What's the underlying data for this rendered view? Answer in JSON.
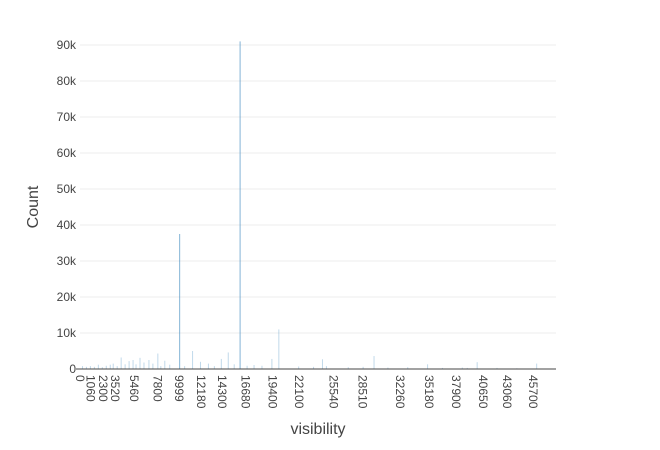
{
  "chart_data": {
    "type": "bar",
    "title": "",
    "xlabel": "visibility",
    "ylabel": "Count",
    "xlim": [
      0,
      48000
    ],
    "ylim": [
      0,
      90000
    ],
    "grid": true,
    "x_tick_values": [
      0,
      1060,
      2300,
      3520,
      5460,
      7800,
      9999,
      12180,
      14300,
      16680,
      19400,
      22100,
      25540,
      28510,
      32260,
      35180,
      37900,
      40650,
      43060,
      45700
    ],
    "x_tick_labels": [
      "0",
      "1060",
      "2300",
      "3520",
      "5460",
      "7800",
      "9999",
      "12180",
      "14300",
      "16680",
      "19400",
      "22100",
      "25540",
      "28510",
      "32260",
      "35180",
      "37900",
      "40650",
      "43060",
      "45700"
    ],
    "y_tick_values": [
      0,
      10000,
      20000,
      30000,
      40000,
      50000,
      60000,
      70000,
      80000,
      90000
    ],
    "y_tick_labels": [
      "0",
      "10k",
      "20k",
      "30k",
      "40k",
      "50k",
      "60k",
      "70k",
      "80k",
      "90k"
    ],
    "series": [
      {
        "color": "#1f77b4",
        "x": [
          200,
          600,
          1000,
          1400,
          1800,
          2200,
          2600,
          3000,
          3300,
          3700,
          4100,
          4500,
          4900,
          5300,
          5600,
          6000,
          6400,
          6900,
          7300,
          7800,
          8100,
          8500,
          9000,
          9999,
          10500,
          11300,
          12100,
          12900,
          13500,
          14200,
          14900,
          15500,
          16093,
          16800,
          17500,
          18300,
          19300,
          20000,
          22000,
          23500,
          24400,
          24800,
          27000,
          28500,
          29600,
          31000,
          33000,
          35000,
          36500,
          38500,
          39000,
          40000,
          42000,
          44000,
          46000
        ],
        "y": [
          800,
          600,
          800,
          600,
          1200,
          500,
          900,
          1200,
          1500,
          800,
          3200,
          1300,
          2200,
          2500,
          1300,
          3100,
          1800,
          2500,
          1500,
          4300,
          800,
          2300,
          1200,
          37500,
          800,
          5000,
          2000,
          1500,
          800,
          2800,
          4600,
          1300,
          91000,
          900,
          1100,
          900,
          2800,
          11000,
          700,
          600,
          2700,
          800,
          500,
          600,
          3600,
          400,
          500,
          1300,
          300,
          400,
          300,
          1900,
          300,
          200,
          1500
        ]
      }
    ]
  }
}
